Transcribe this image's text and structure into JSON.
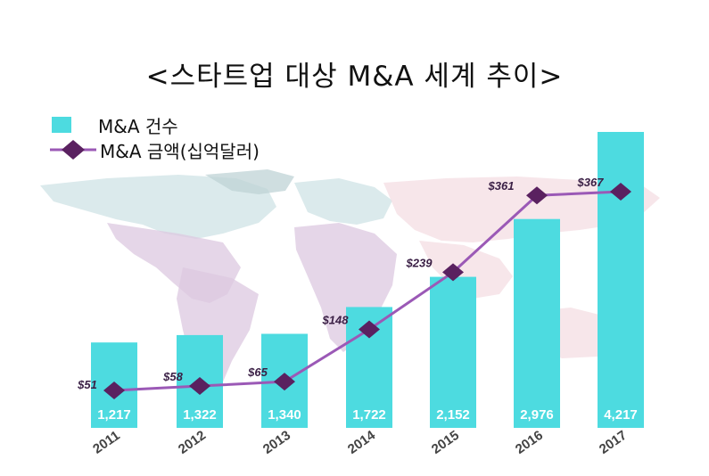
{
  "title": "<스타트업 대상 M&A 세계 추이>",
  "colors": {
    "bar": "#4ddbe0",
    "line": "#9b59b6",
    "marker": "#5a2160",
    "map_lilac": "#dcc8e0",
    "map_teal": "#cfe3e6",
    "map_pink": "#f4dde3"
  },
  "legend": {
    "bar_label": "M&A 건수",
    "line_label": "M&A 금액(십억달러)"
  },
  "chart_data": {
    "type": "bar",
    "categories": [
      "2011",
      "2012",
      "2013",
      "2014",
      "2015",
      "2016",
      "2017"
    ],
    "series": [
      {
        "name": "M&A 건수",
        "type": "bar",
        "values": [
          1217,
          1322,
          1340,
          1722,
          2152,
          2976,
          4217
        ],
        "labels": [
          "1,217",
          "1,322",
          "1,340",
          "1,722",
          "2,152",
          "2,976",
          "4,217"
        ]
      },
      {
        "name": "M&A 금액(십억달러)",
        "type": "line",
        "values": [
          51,
          58,
          65,
          148,
          239,
          361,
          367
        ],
        "labels": [
          "$51",
          "$58",
          "$65",
          "$148",
          "$239",
          "$361",
          "$367"
        ]
      }
    ],
    "title": "<스타트업 대상 M&A 세계 추이>",
    "legend_position": "top-left",
    "grid": false
  }
}
